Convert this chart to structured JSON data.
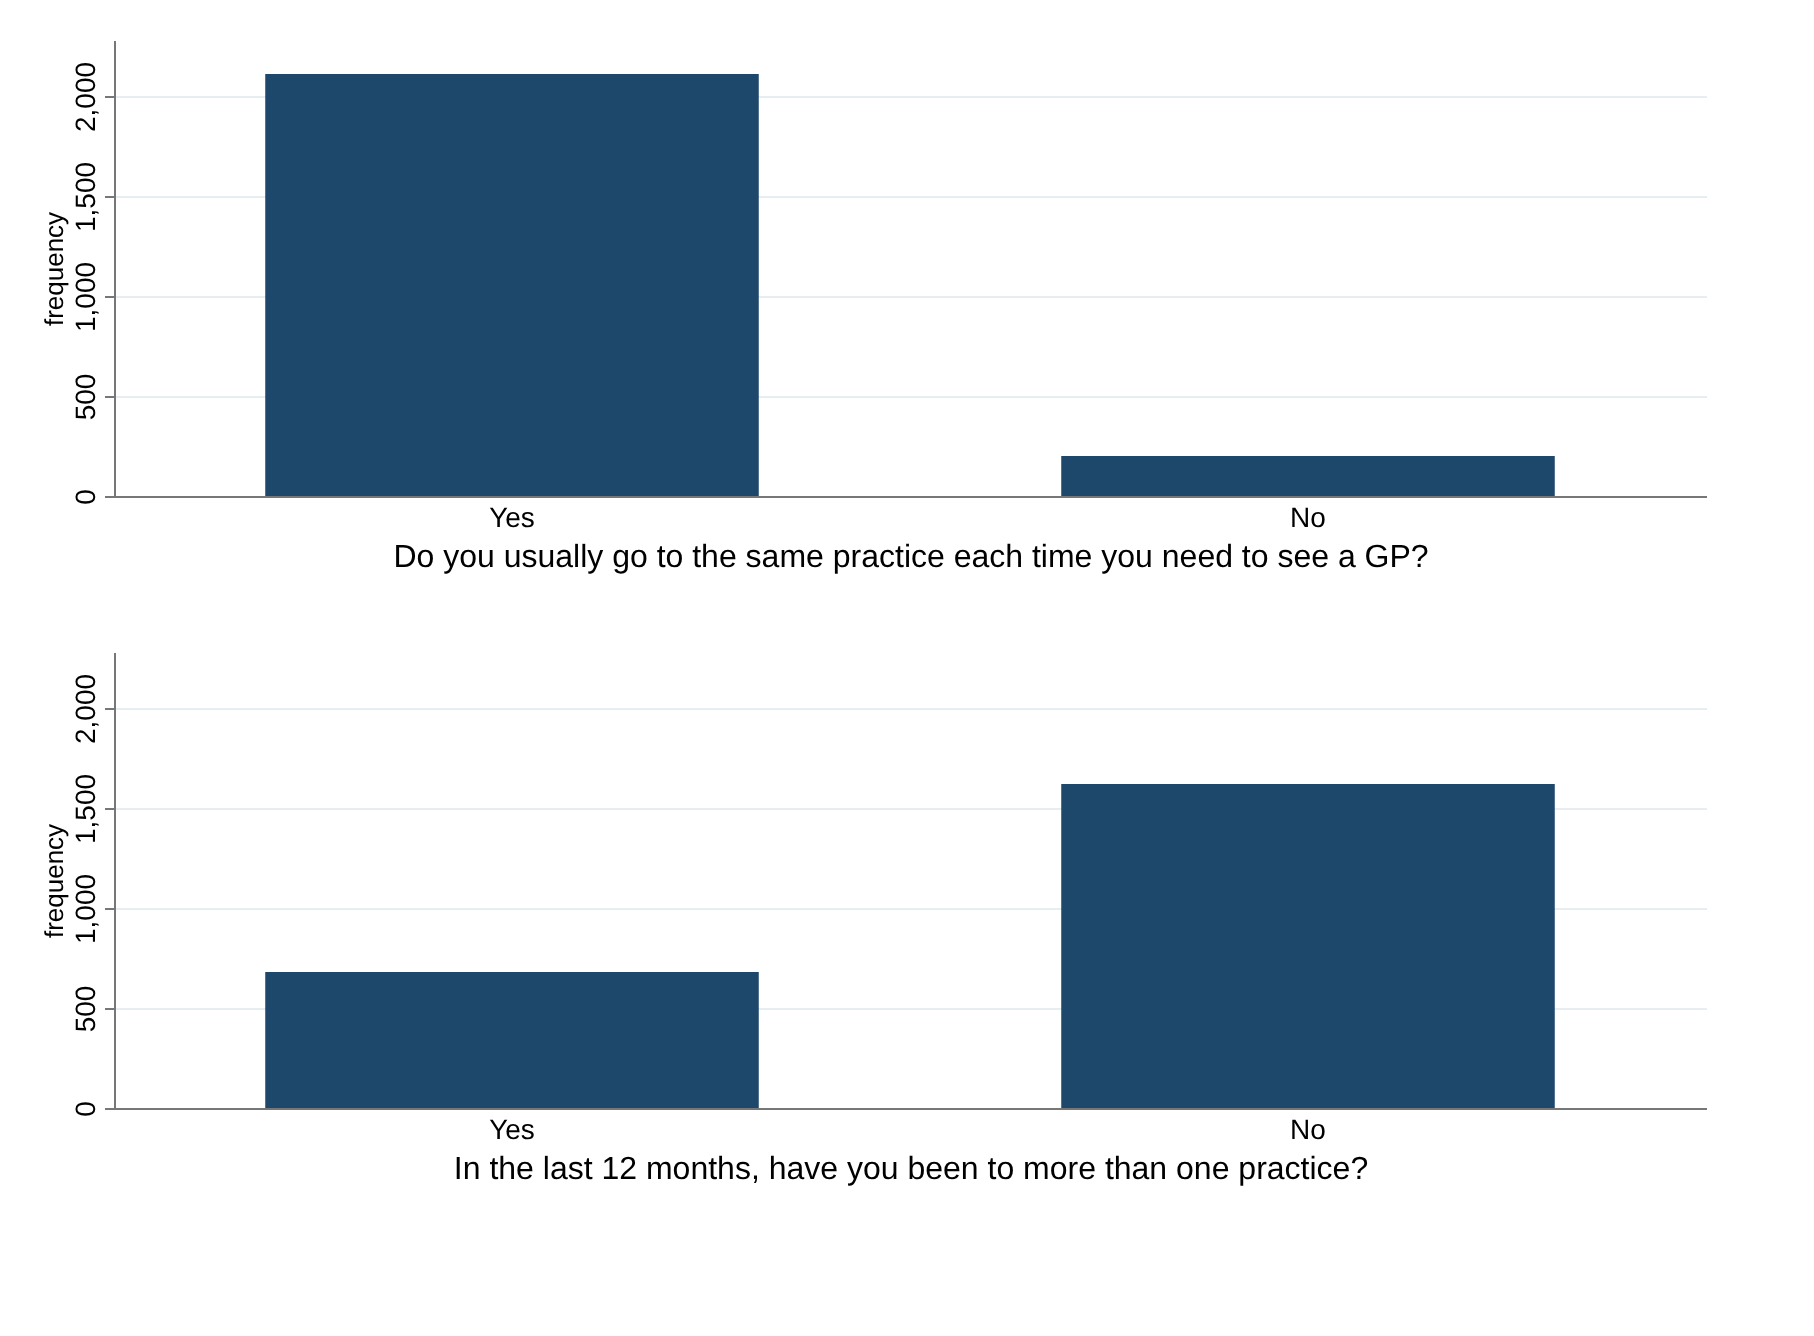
{
  "chart_data": [
    {
      "type": "bar",
      "xlabel": "Do you usually go to the same practice each time you need to see a GP?",
      "ylabel": "frequency",
      "categories": [
        "Yes",
        "No"
      ],
      "values": [
        2110,
        200
      ],
      "color": "#1d476b",
      "ylim": [
        0,
        2280
      ],
      "yticks": [
        {
          "value": 0,
          "label": "0"
        },
        {
          "value": 500,
          "label": "500"
        },
        {
          "value": 1000,
          "label": "1,000"
        },
        {
          "value": 1500,
          "label": "1,500"
        },
        {
          "value": 2000,
          "label": "2,000"
        }
      ],
      "grid": "y"
    },
    {
      "type": "bar",
      "xlabel": "In the last 12 months, have you been to more than one practice?",
      "ylabel": "frequency",
      "categories": [
        "Yes",
        "No"
      ],
      "values": [
        680,
        1620
      ],
      "color": "#1d476b",
      "ylim": [
        0,
        2280
      ],
      "yticks": [
        {
          "value": 0,
          "label": "0"
        },
        {
          "value": 500,
          "label": "500"
        },
        {
          "value": 1000,
          "label": "1,000"
        },
        {
          "value": 1500,
          "label": "1,500"
        },
        {
          "value": 2000,
          "label": "2,000"
        }
      ],
      "grid": "y"
    }
  ]
}
